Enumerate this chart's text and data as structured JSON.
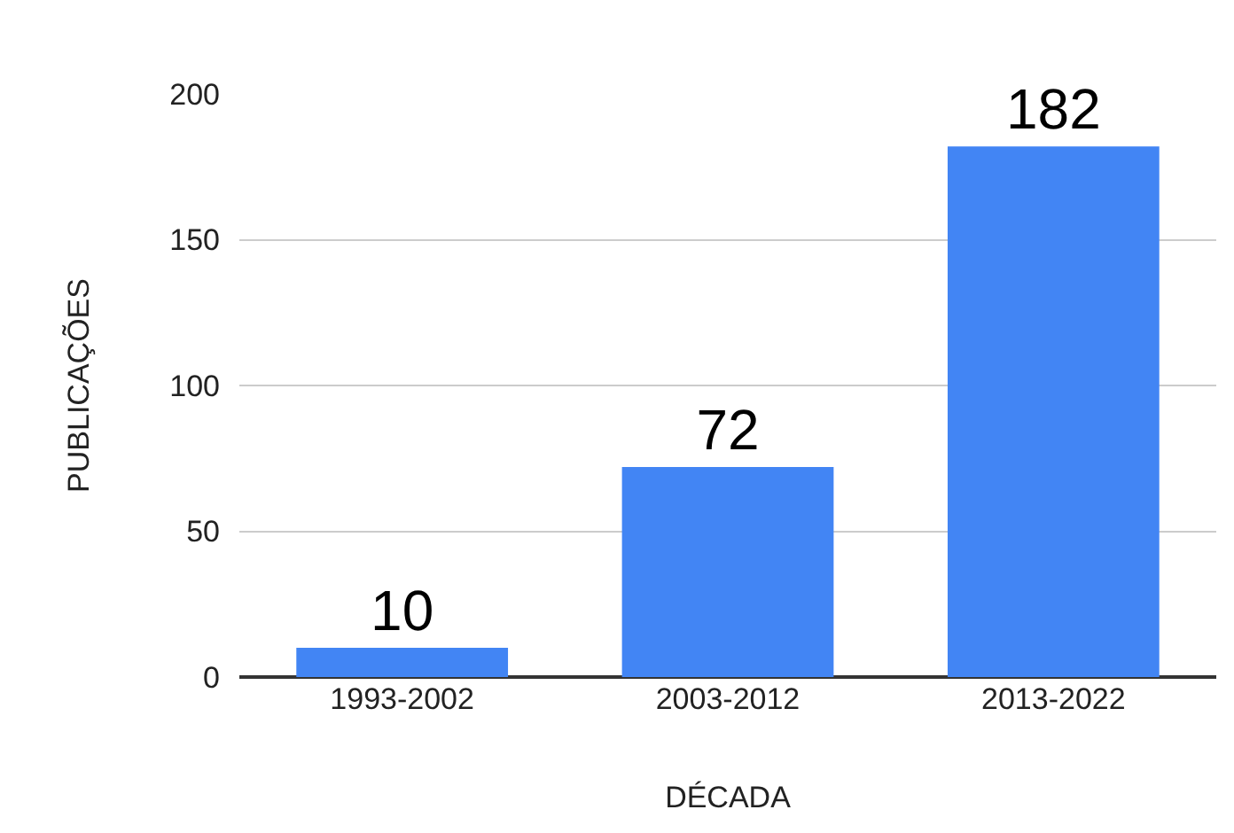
{
  "chart_data": {
    "type": "bar",
    "xlabel": "DÉCADA",
    "ylabel": "PUBLICAÇÕES",
    "categories": [
      "1993-2002",
      "2003-2012",
      "2013-2022"
    ],
    "values": [
      10,
      72,
      182
    ],
    "color": "#4285f4",
    "data_labels": true,
    "ylim": [
      0,
      200
    ],
    "yticks": [
      0,
      50,
      100,
      150,
      200
    ],
    "grid": "y"
  }
}
